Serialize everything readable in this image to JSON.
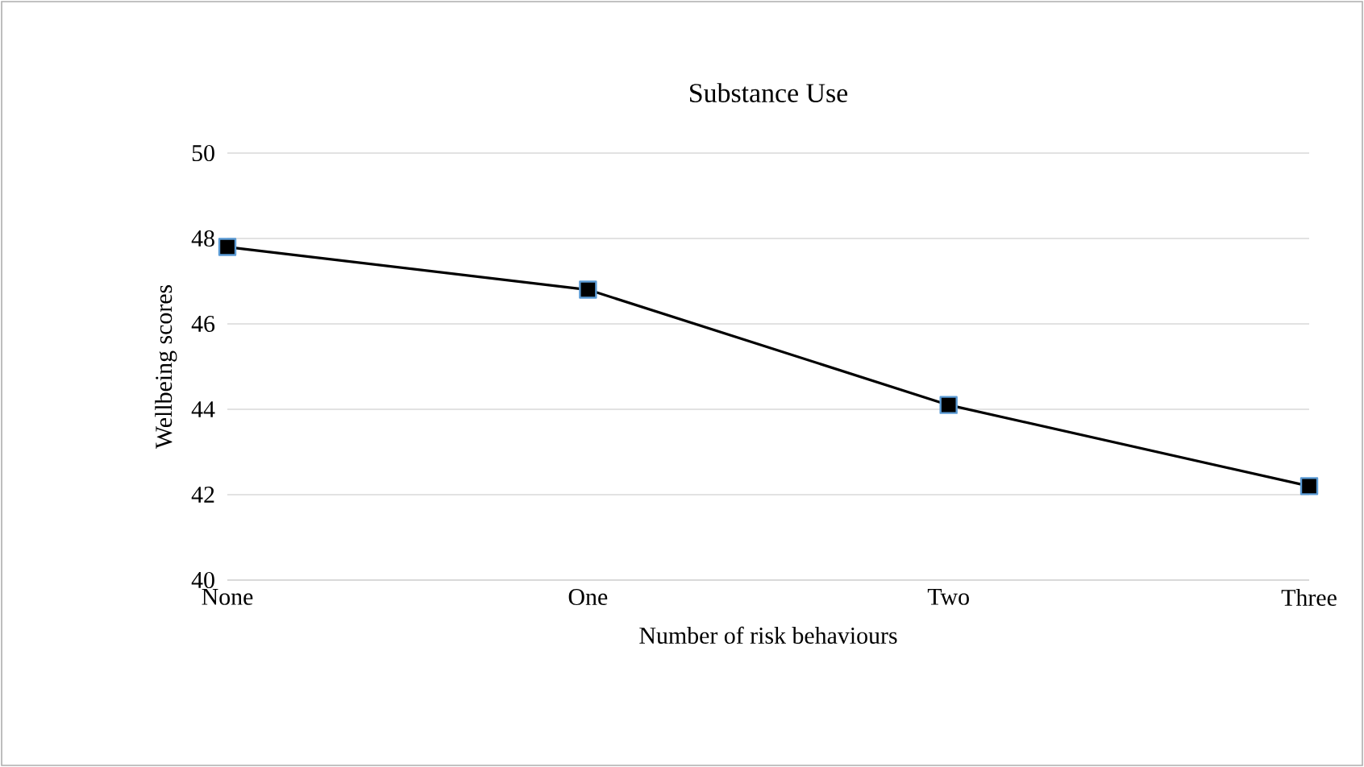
{
  "chart_data": {
    "type": "line",
    "title": "Substance Use",
    "xlabel": "Number of risk behaviours",
    "ylabel": "Wellbeing scores",
    "categories": [
      "None",
      "One",
      "Two",
      "Three"
    ],
    "series": [
      {
        "color": "#000000",
        "values": [
          47.8,
          46.8,
          44.1,
          42.2
        ]
      }
    ],
    "ylim": [
      40,
      50
    ],
    "yticks": [
      40,
      42,
      44,
      46,
      48,
      50
    ],
    "grid": "y",
    "marker": "square",
    "line_style": "solid"
  }
}
